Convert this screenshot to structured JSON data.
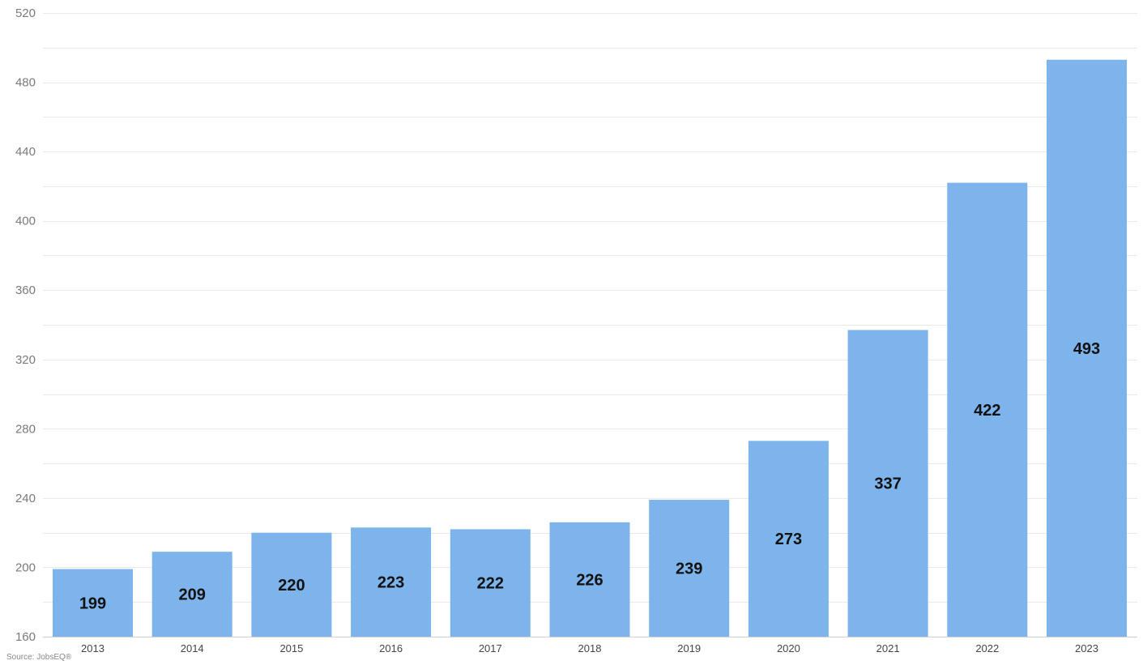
{
  "chart_data": {
    "type": "bar",
    "categories": [
      "2013",
      "2014",
      "2015",
      "2016",
      "2017",
      "2018",
      "2019",
      "2020",
      "2021",
      "2022",
      "2023"
    ],
    "values": [
      199,
      209,
      220,
      223,
      222,
      226,
      239,
      273,
      337,
      422,
      493
    ],
    "data_labels": [
      "199",
      "209",
      "220",
      "223",
      "222",
      "226",
      "239",
      "273",
      "337",
      "422",
      "493"
    ],
    "title": "",
    "xlabel": "",
    "ylabel": "",
    "ylim": [
      160,
      520
    ],
    "y_ticks": [
      160,
      200,
      240,
      280,
      320,
      360,
      400,
      440,
      480,
      520
    ],
    "grid": true,
    "legend": "none",
    "bar_color": "#7cb4eb",
    "label_color": "#111111"
  },
  "source": {
    "text": "Source: JobsEQ®"
  }
}
